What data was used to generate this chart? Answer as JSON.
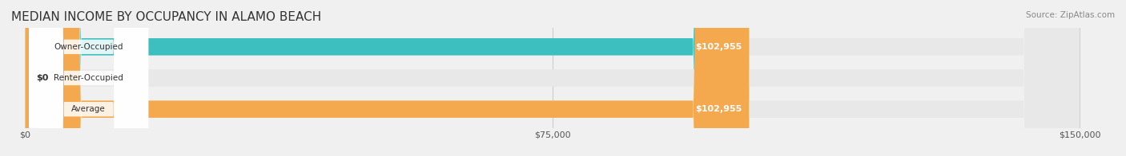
{
  "title": "MEDIAN INCOME BY OCCUPANCY IN ALAMO BEACH",
  "source": "Source: ZipAtlas.com",
  "categories": [
    "Owner-Occupied",
    "Renter-Occupied",
    "Average"
  ],
  "values": [
    102955,
    0,
    102955
  ],
  "bar_colors": [
    "#3dbfbf",
    "#c4a8d4",
    "#f5a94e"
  ],
  "label_colors": [
    "white",
    "black",
    "white"
  ],
  "value_labels": [
    "$102,955",
    "$0",
    "$102,955"
  ],
  "xlim": [
    0,
    150000
  ],
  "xticks": [
    0,
    75000,
    150000
  ],
  "xtick_labels": [
    "$0",
    "$75,000",
    "$150,000"
  ],
  "background_color": "#f0f0f0",
  "bar_background_color": "#e8e8e8",
  "title_fontsize": 11,
  "bar_height": 0.55,
  "figsize": [
    14.06,
    1.96
  ]
}
